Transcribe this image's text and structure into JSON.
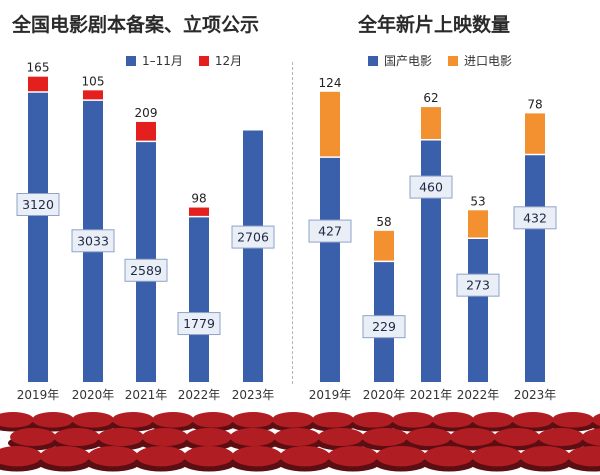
{
  "colors": {
    "domestic_blue": "#3a60ab",
    "december_red": "#e3201d",
    "import_orange": "#f39130",
    "seat_red": "#b01d22",
    "seat_dark": "#5c0e12"
  },
  "icons": [
    "cinema-seats-decoration"
  ],
  "chart_data": [
    {
      "type": "bar",
      "stacked": true,
      "title": "全国电影剧本备案、立项公示",
      "categories": [
        "2019年",
        "2020年",
        "2021年",
        "2022年",
        "2023年"
      ],
      "series": [
        {
          "name": "1–11月",
          "values": [
            3120,
            3033,
            2589,
            1779,
            2706
          ],
          "color": "#3a60ab"
        },
        {
          "name": "12月",
          "values": [
            165,
            105,
            209,
            98,
            null
          ],
          "color": "#e3201d"
        }
      ],
      "ylim": [
        0,
        3400
      ],
      "grid": false,
      "legend_position": "top"
    },
    {
      "type": "bar",
      "stacked": true,
      "title": "全年新片上映数量",
      "categories": [
        "2019年",
        "2020年",
        "2021年",
        "2022年",
        "2023年"
      ],
      "series": [
        {
          "name": "国产电影",
          "values": [
            427,
            229,
            460,
            273,
            432
          ],
          "color": "#3a60ab"
        },
        {
          "name": "进口电影",
          "values": [
            124,
            58,
            62,
            53,
            78
          ],
          "color": "#f39130"
        }
      ],
      "ylim": [
        0,
        600
      ],
      "grid": false,
      "legend_position": "top"
    }
  ]
}
